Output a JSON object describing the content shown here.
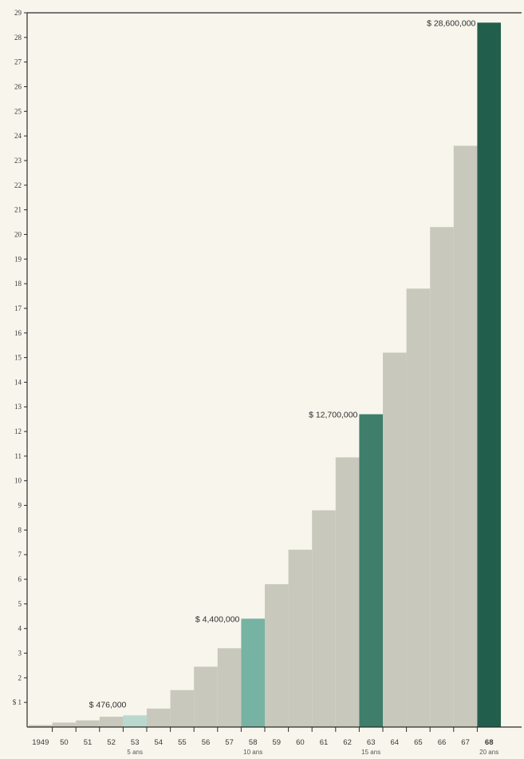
{
  "chart_data": {
    "type": "bar",
    "title": "",
    "xlabel": "",
    "ylabel": "",
    "ylim": [
      0,
      29
    ],
    "y_ticks": [
      "$ 1",
      "2",
      "3",
      "4",
      "5",
      "6",
      "7",
      "8",
      "9",
      "10",
      "11",
      "12",
      "13",
      "14",
      "15",
      "16",
      "17",
      "18",
      "19",
      "20",
      "21",
      "22",
      "23",
      "24",
      "25",
      "26",
      "27",
      "28",
      "29"
    ],
    "y_tick_values": [
      1,
      2,
      3,
      4,
      5,
      6,
      7,
      8,
      9,
      10,
      11,
      12,
      13,
      14,
      15,
      16,
      17,
      18,
      19,
      20,
      21,
      22,
      23,
      24,
      25,
      26,
      27,
      28,
      29
    ],
    "categories": [
      "1949",
      "50",
      "51",
      "52",
      "53",
      "54",
      "55",
      "56",
      "57",
      "58",
      "59",
      "60",
      "61",
      "62",
      "63",
      "64",
      "65",
      "66",
      "67",
      "68"
    ],
    "values": [
      0.08,
      0.18,
      0.27,
      0.42,
      0.476,
      0.75,
      1.5,
      2.45,
      3.2,
      4.4,
      5.8,
      7.2,
      8.8,
      10.95,
      12.7,
      15.2,
      17.8,
      20.3,
      23.6,
      28.6
    ],
    "bar_styles": [
      "base",
      "base",
      "base",
      "base",
      "light",
      "base",
      "base",
      "base",
      "base",
      "medium",
      "base",
      "base",
      "base",
      "base",
      "dark",
      "base",
      "base",
      "base",
      "base",
      "darkest"
    ],
    "sublabels": [
      {
        "category": "53",
        "text": "5 ans"
      },
      {
        "category": "58",
        "text": "10 ans"
      },
      {
        "category": "63",
        "text": "15 ans"
      },
      {
        "category": "68",
        "text": "20 ans"
      }
    ],
    "annotations": [
      {
        "category": "53",
        "text": "$ 476,000"
      },
      {
        "category": "58",
        "text": "$ 4,400,000"
      },
      {
        "category": "63",
        "text": "$ 12,700,000"
      },
      {
        "category": "68",
        "text": "$ 28,600,000"
      }
    ],
    "bold_category": "68",
    "grid": false,
    "colors": {
      "background": "#f7f5ec",
      "base": "#c9c8bd",
      "light": "#b9d9cf",
      "medium": "#76b3a2",
      "dark": "#3e7e6b",
      "darkest": "#225e4c",
      "axis": "#2b2b2b"
    }
  }
}
